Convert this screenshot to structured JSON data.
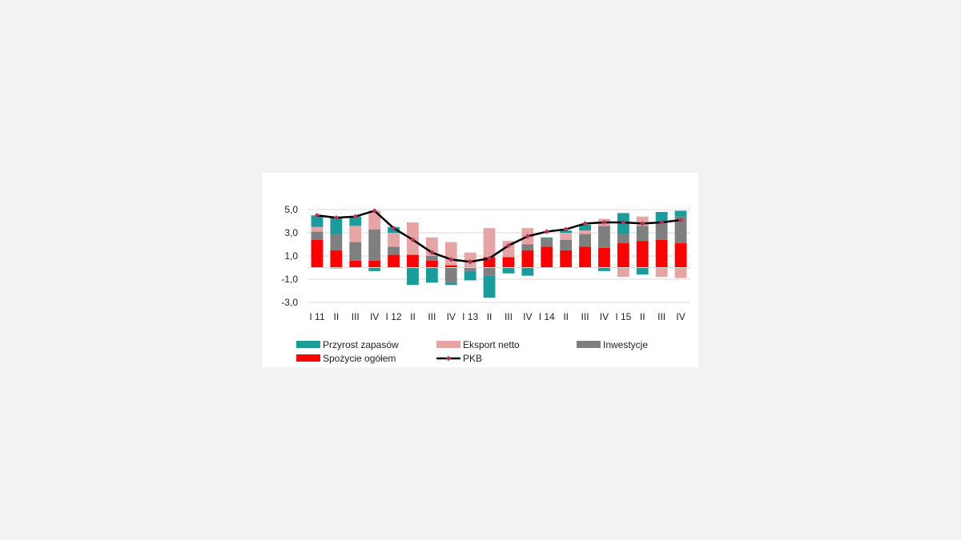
{
  "chart_data": {
    "type": "bar",
    "stacked": true,
    "title": "",
    "xlabel": "",
    "ylabel": "",
    "ylim": [
      -3.0,
      6.0
    ],
    "yticks": [
      5.0,
      3.0,
      1.0,
      -1.0,
      -3.0
    ],
    "ytick_labels": [
      "5,0",
      "3,0",
      "1,0",
      "-1,0",
      "-3,0"
    ],
    "grid": true,
    "legend_position": "bottom",
    "categories": [
      "I 11",
      "II",
      "III",
      "IV",
      "I 12",
      "II",
      "III",
      "IV",
      "I 13",
      "II",
      "III",
      "IV",
      "I 14",
      "II",
      "III",
      "IV",
      "I 15",
      "II",
      "III",
      "IV"
    ],
    "series": [
      {
        "name": "Spożycie ogółem",
        "kind": "bar",
        "color": "#ff0000",
        "values": [
          2.4,
          1.5,
          0.6,
          0.6,
          1.1,
          1.1,
          0.6,
          0.2,
          0.0,
          0.9,
          0.9,
          1.5,
          1.8,
          1.5,
          1.8,
          1.7,
          2.1,
          2.3,
          2.4,
          2.1
        ]
      },
      {
        "name": "Inwestycje",
        "kind": "bar",
        "color": "#7f7f7f",
        "values": [
          0.7,
          1.4,
          1.6,
          2.7,
          0.7,
          0.0,
          0.4,
          -1.3,
          -0.3,
          -0.7,
          0.0,
          0.5,
          0.7,
          0.9,
          1.1,
          1.9,
          0.8,
          1.3,
          1.4,
          2.3
        ]
      },
      {
        "name": "Eksport netto",
        "kind": "bar",
        "color": "#e6a5a5",
        "values": [
          0.4,
          -0.1,
          1.4,
          1.6,
          1.2,
          2.8,
          1.6,
          2.0,
          1.3,
          2.5,
          1.4,
          1.4,
          0.0,
          0.6,
          0.3,
          0.6,
          -0.8,
          0.8,
          -0.8,
          -0.9
        ]
      },
      {
        "name": "Przyrost zapasów",
        "kind": "bar",
        "color": "#1a9c9c",
        "values": [
          1.0,
          1.4,
          0.8,
          -0.3,
          0.5,
          -1.5,
          -1.3,
          -0.2,
          -0.8,
          -1.9,
          -0.5,
          -0.7,
          0.1,
          0.2,
          0.5,
          -0.3,
          1.8,
          -0.6,
          1.0,
          0.5
        ]
      },
      {
        "name": "PKB",
        "kind": "line",
        "color": "#000000",
        "marker_color": "#b5335a",
        "values": [
          4.5,
          4.3,
          4.4,
          4.9,
          3.4,
          2.4,
          1.3,
          0.7,
          0.5,
          0.8,
          1.9,
          2.7,
          3.1,
          3.3,
          3.8,
          3.9,
          3.9,
          3.8,
          3.9,
          4.1
        ]
      }
    ]
  }
}
